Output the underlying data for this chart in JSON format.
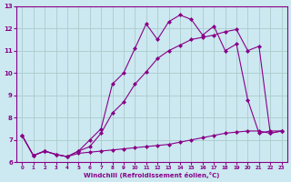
{
  "xlabel": "Windchill (Refroidissement éolien,°C)",
  "xlim": [
    -0.5,
    23.5
  ],
  "ylim": [
    6,
    13
  ],
  "yticks": [
    6,
    7,
    8,
    9,
    10,
    11,
    12,
    13
  ],
  "xticks": [
    0,
    1,
    2,
    3,
    4,
    5,
    6,
    7,
    8,
    9,
    10,
    11,
    12,
    13,
    14,
    15,
    16,
    17,
    18,
    19,
    20,
    21,
    22,
    23
  ],
  "background_color": "#cce8f0",
  "line_color": "#880088",
  "grid_color": "#aacccc",
  "line1_x": [
    0,
    1,
    2,
    3,
    4,
    5,
    6,
    7,
    8,
    9,
    10,
    11,
    12,
    13,
    14,
    15,
    16,
    17,
    18,
    19,
    20,
    21,
    22,
    23
  ],
  "line1_y": [
    7.2,
    6.3,
    6.5,
    6.35,
    6.25,
    6.5,
    6.7,
    7.3,
    8.2,
    8.7,
    9.5,
    10.05,
    10.65,
    11.0,
    11.25,
    11.5,
    11.6,
    11.7,
    11.85,
    11.95,
    11.0,
    11.2,
    7.3,
    7.4
  ],
  "line2_x": [
    0,
    1,
    2,
    3,
    4,
    5,
    6,
    7,
    8,
    9,
    10,
    11,
    12,
    13,
    14,
    15,
    16,
    17,
    18,
    19,
    20,
    21,
    22,
    23
  ],
  "line2_y": [
    7.2,
    6.3,
    6.5,
    6.35,
    6.25,
    6.5,
    7.0,
    7.5,
    9.5,
    10.0,
    11.1,
    12.2,
    11.5,
    12.3,
    12.6,
    12.4,
    11.7,
    12.1,
    11.0,
    11.3,
    8.8,
    7.3,
    7.4,
    7.4
  ],
  "line3_x": [
    0,
    1,
    2,
    3,
    4,
    5,
    6,
    7,
    8,
    9,
    10,
    11,
    12,
    13,
    14,
    15,
    16,
    17,
    18,
    19,
    20,
    21,
    22,
    23
  ],
  "line3_y": [
    7.2,
    6.3,
    6.5,
    6.35,
    6.25,
    6.4,
    6.45,
    6.5,
    6.55,
    6.6,
    6.65,
    6.7,
    6.75,
    6.8,
    6.9,
    7.0,
    7.1,
    7.2,
    7.3,
    7.35,
    7.4,
    7.4,
    7.3,
    7.4
  ]
}
